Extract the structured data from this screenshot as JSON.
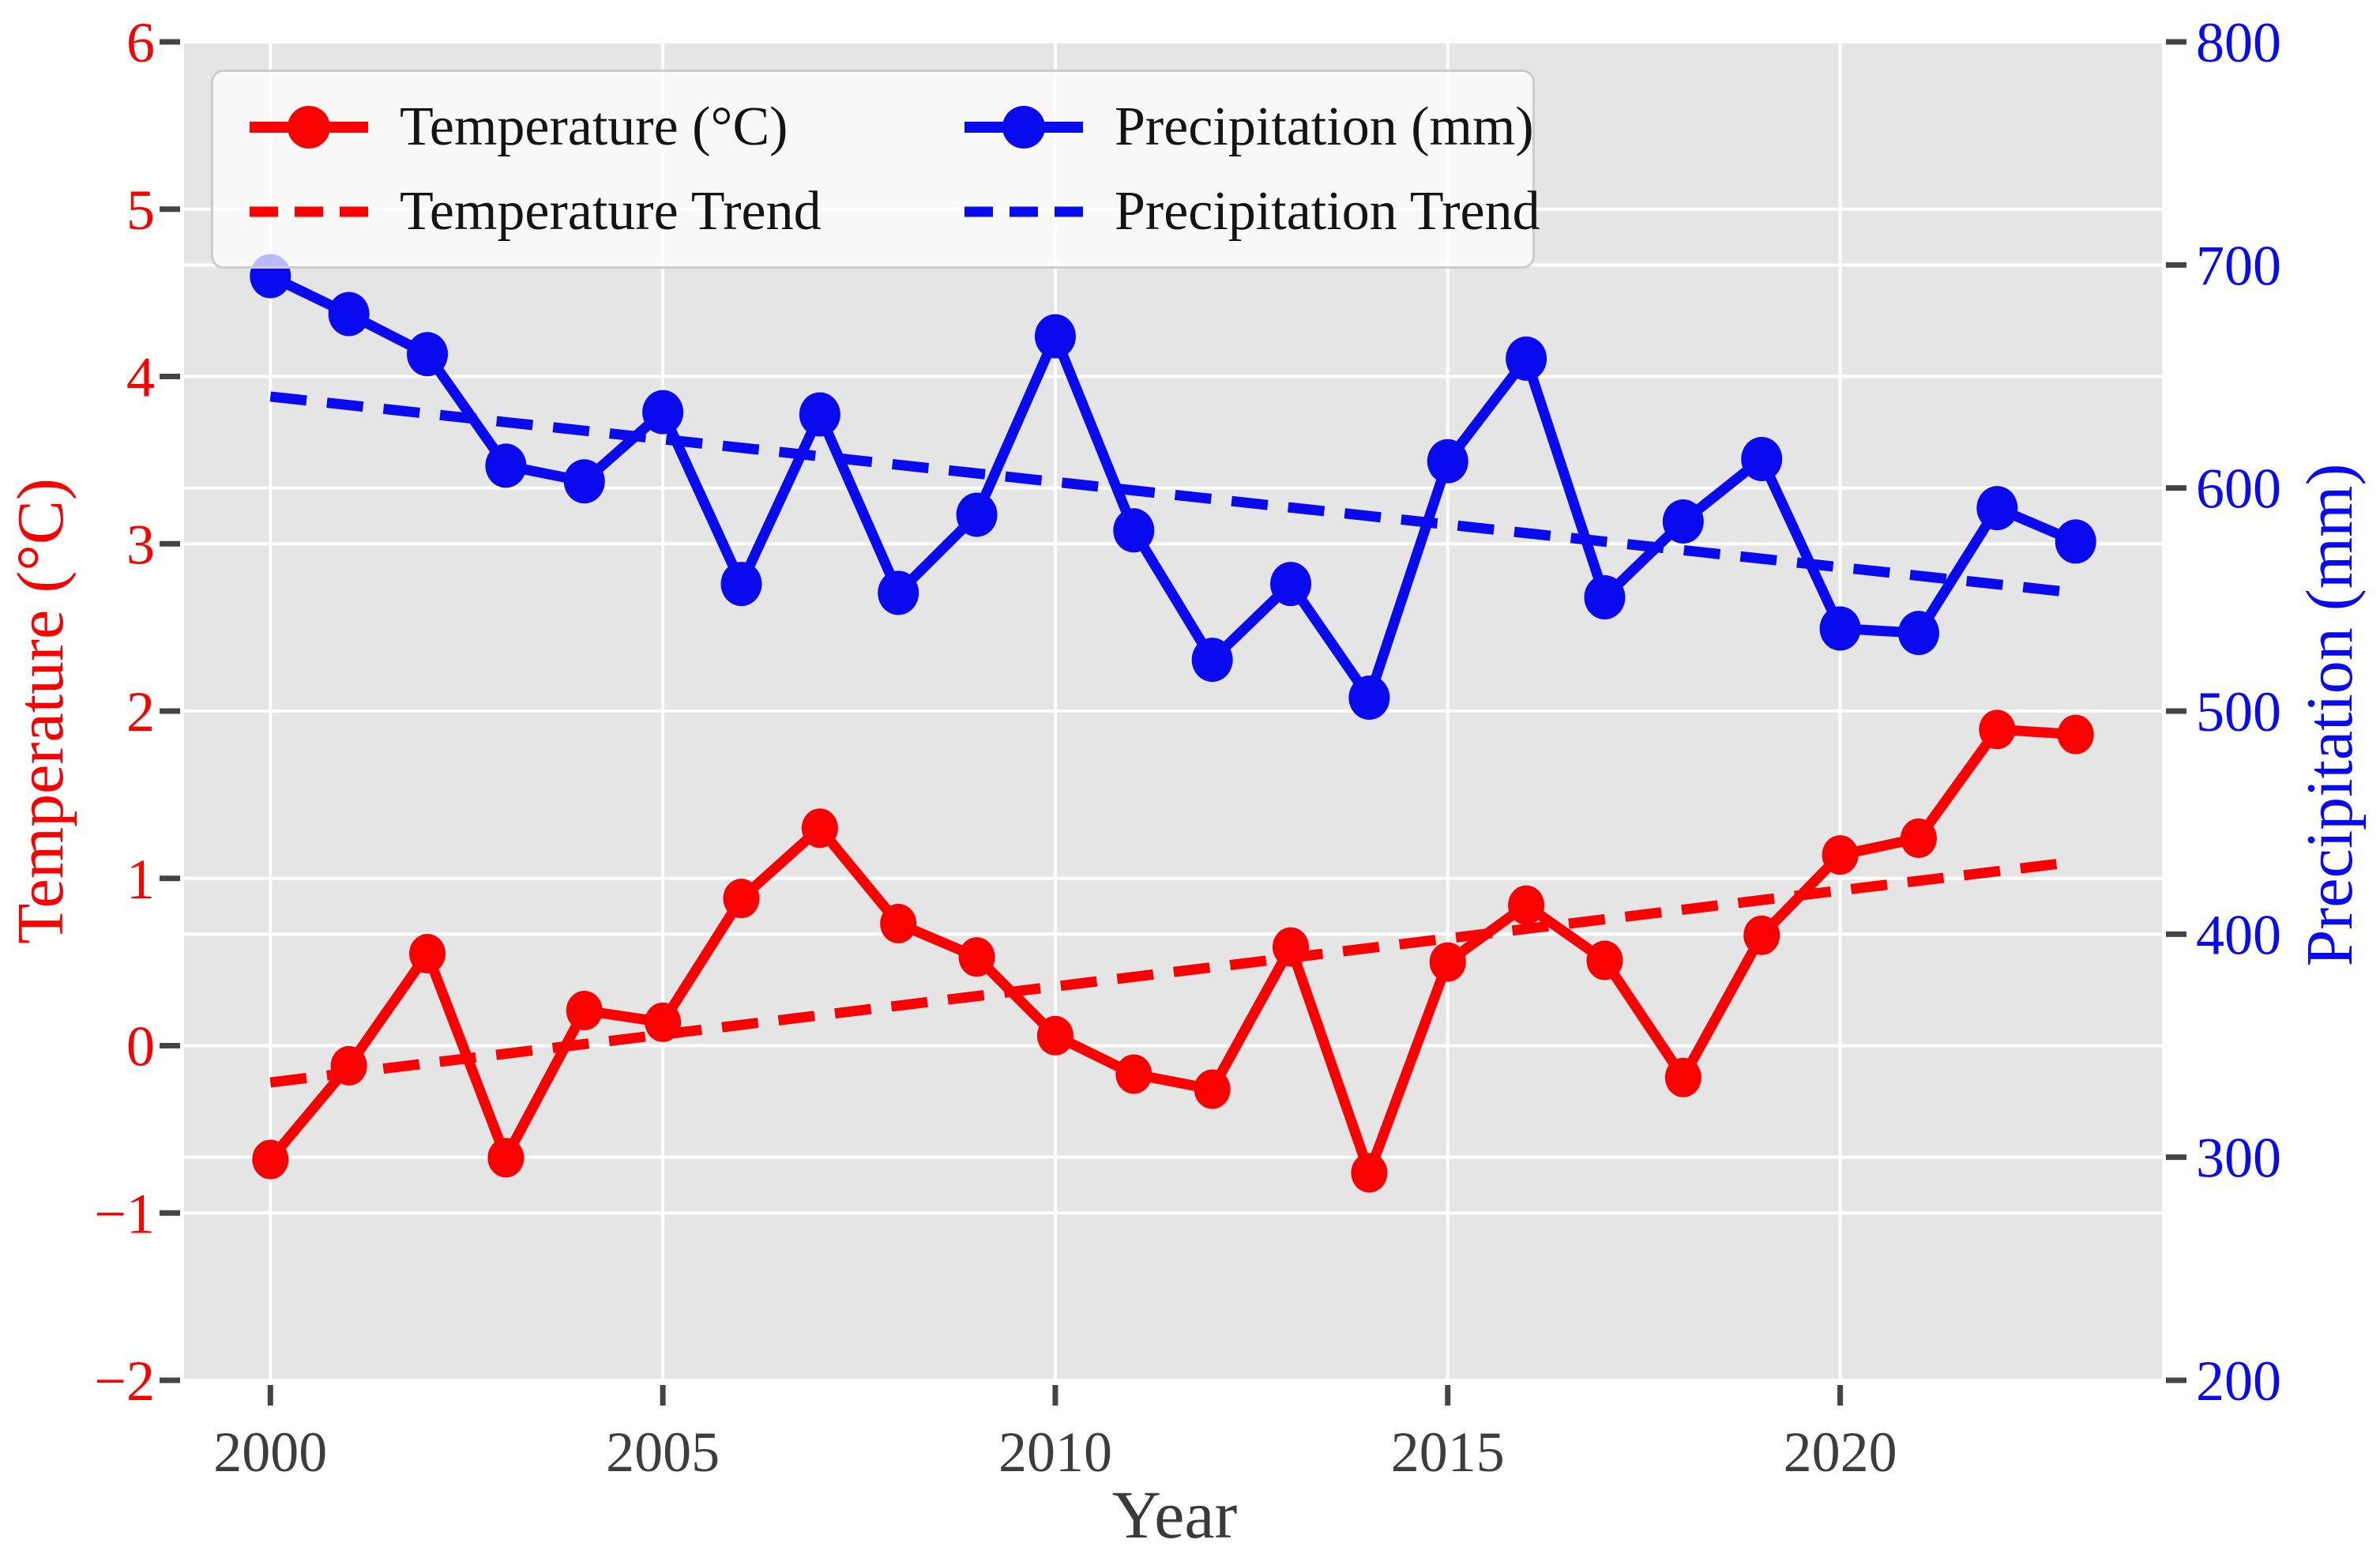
{
  "chart_data": {
    "type": "line",
    "title": "",
    "xlabel": "Year",
    "ylabel_left": "Temperature (°C)",
    "ylabel_right": "Precipitation (mm)",
    "x": [
      2000,
      2001,
      2002,
      2003,
      2004,
      2005,
      2006,
      2007,
      2008,
      2009,
      2010,
      2011,
      2012,
      2013,
      2014,
      2015,
      2016,
      2017,
      2018,
      2019,
      2020,
      2021,
      2022,
      2023
    ],
    "series": [
      {
        "name": "Temperature (°C)",
        "axis": "left",
        "color": "#fa0000",
        "line": "solid",
        "marker": "circle",
        "values": [
          -0.68,
          -0.12,
          0.55,
          -0.67,
          0.21,
          0.14,
          0.88,
          1.3,
          0.73,
          0.53,
          0.06,
          -0.17,
          -0.26,
          0.59,
          -0.76,
          0.5,
          0.84,
          0.51,
          -0.19,
          0.66,
          1.14,
          1.24,
          1.89,
          1.86
        ]
      },
      {
        "name": "Precipitation (mm)",
        "axis": "right",
        "color": "#0a0aee",
        "line": "solid",
        "marker": "circle",
        "values": [
          695,
          678,
          660,
          610,
          603,
          634,
          557,
          633,
          553,
          588,
          668,
          581,
          523,
          557,
          506,
          612,
          658,
          551,
          585,
          613,
          537,
          535,
          591,
          576
        ]
      },
      {
        "name": "Temperature Trend",
        "axis": "left",
        "color": "#fa0000",
        "line": "dashed",
        "trend_start": -0.22,
        "trend_end": 1.1
      },
      {
        "name": "Precipitation Trend",
        "axis": "right",
        "color": "#0a0aee",
        "line": "dashed",
        "trend_start": 641,
        "trend_end": 553
      }
    ],
    "axes": {
      "x": {
        "ticks": [
          2000,
          2005,
          2010,
          2015,
          2020
        ],
        "range": [
          1998.9,
          2024.1
        ],
        "label_color": "#3d3d3d"
      },
      "left": {
        "ticks": [
          6,
          5,
          4,
          3,
          2,
          1,
          0,
          -1,
          -2
        ],
        "range": [
          -2,
          6
        ],
        "label_color": "#fa0000"
      },
      "right": {
        "ticks": [
          800,
          700,
          600,
          500,
          400,
          300,
          200
        ],
        "range": [
          200,
          800
        ],
        "label_color": "#0a0aee"
      }
    },
    "legend": {
      "position": "upper-left",
      "entries": [
        {
          "label": "Temperature (°C)",
          "color": "#fa0000",
          "style": "line-marker"
        },
        {
          "label": "Temperature Trend",
          "color": "#fa0000",
          "style": "dashed"
        },
        {
          "label": "Precipitation (mm)",
          "color": "#0a0aee",
          "style": "line-marker"
        },
        {
          "label": "Precipitation Trend",
          "color": "#0a0aee",
          "style": "dashed"
        }
      ]
    },
    "grid": true,
    "plot_background": "#e5e5e5",
    "gridline_color": "#ffffff",
    "tick_mark_color": "#444444"
  }
}
